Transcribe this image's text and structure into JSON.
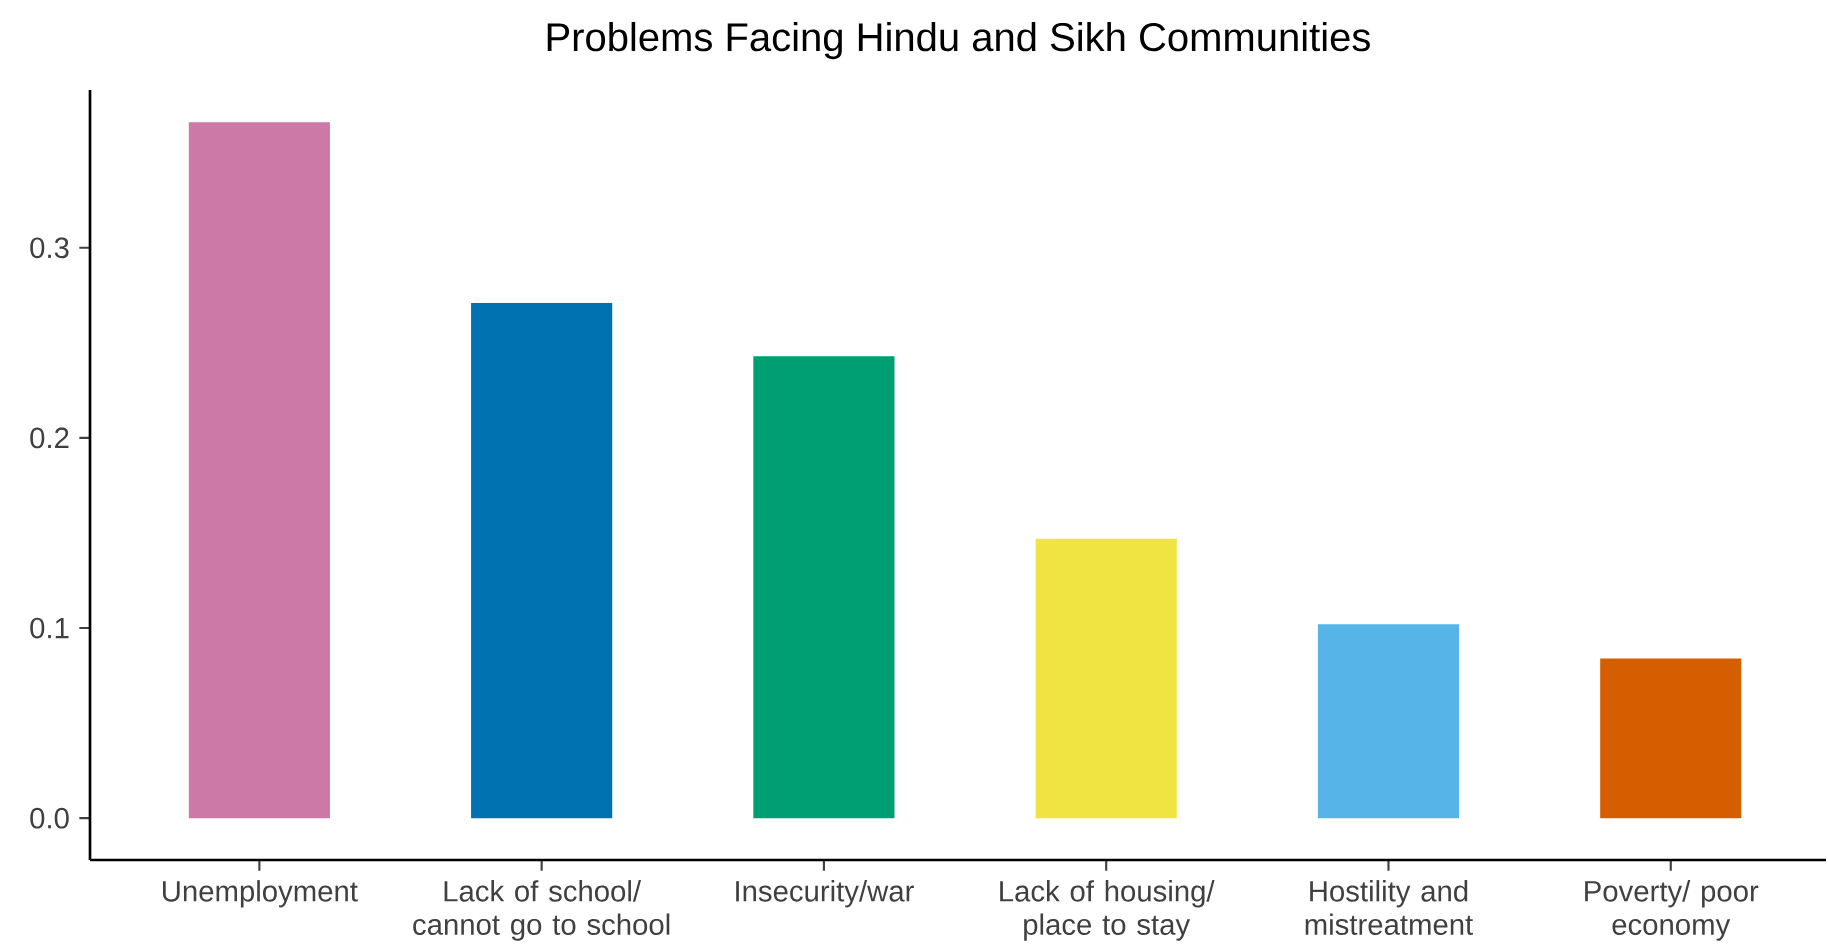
{
  "chart_data": {
    "type": "bar",
    "title": "Problems Facing Hindu and Sikh Communities",
    "categories": [
      "Unemployment",
      "Lack of school/ cannot go to school",
      "Insecurity/war",
      "Lack of housing/ place to stay",
      "Hostility and mistreatment",
      "Poverty/ poor economy"
    ],
    "values": [
      0.366,
      0.271,
      0.243,
      0.147,
      0.102,
      0.084
    ],
    "colors": [
      "#cc79a7",
      "#0072b2",
      "#009e73",
      "#f0e442",
      "#56b4e9",
      "#d55e00"
    ],
    "ylim": [
      -0.022,
      0.383
    ],
    "yticks": [
      {
        "value": 0,
        "label": "0.0"
      },
      {
        "value": 0.1,
        "label": "0.1"
      },
      {
        "value": 0.2,
        "label": "0.2"
      },
      {
        "value": 0.3,
        "label": "0.3"
      }
    ],
    "grid": false
  }
}
